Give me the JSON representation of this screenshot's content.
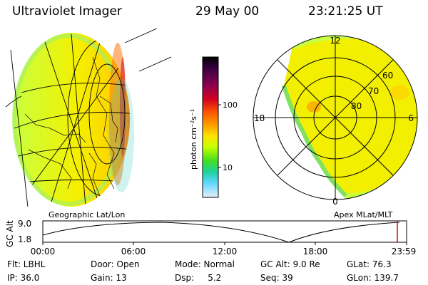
{
  "header": {
    "title": "Ultraviolet Imager",
    "date": "29 May 00",
    "time": "23:21:25 UT"
  },
  "colorbar": {
    "unit_label": "photon cm⁻²s⁻¹",
    "ticks": [
      "100",
      "10"
    ],
    "colors_top_to_bottom": [
      "#000000",
      "#3a0040",
      "#8a0050",
      "#d40020",
      "#ff5a00",
      "#ff9a00",
      "#ffe000",
      "#c8ff00",
      "#40e020",
      "#20d0a0",
      "#60d8ff",
      "#e8f0f8"
    ]
  },
  "polar_plot": {
    "lat_labels": [
      "60",
      "70",
      "80"
    ],
    "mlt_labels": [
      "12",
      "18",
      "6",
      "0"
    ]
  },
  "map_labels": {
    "left": "Geographic Lat/Lon",
    "right": "Apex MLat/MLT"
  },
  "altitude_plot": {
    "ylabel": "GC Alt",
    "yticks": [
      "9.0",
      "1.8"
    ],
    "xticks": [
      "00:00",
      "06:00",
      "12:00",
      "18:00",
      "23:59"
    ]
  },
  "status": {
    "filter": "Flt: LBHL",
    "ip": "IP: 36.0",
    "door": "Door: Open",
    "gain": "Gain: 13",
    "mode": "Mode: Normal",
    "dsp": "Dsp:     5.2",
    "gc_alt": "GC Alt: 9.0 Re",
    "seq": "Seq: 39",
    "glat": "GLat: 76.3",
    "glon": "GLon: 139.7"
  }
}
